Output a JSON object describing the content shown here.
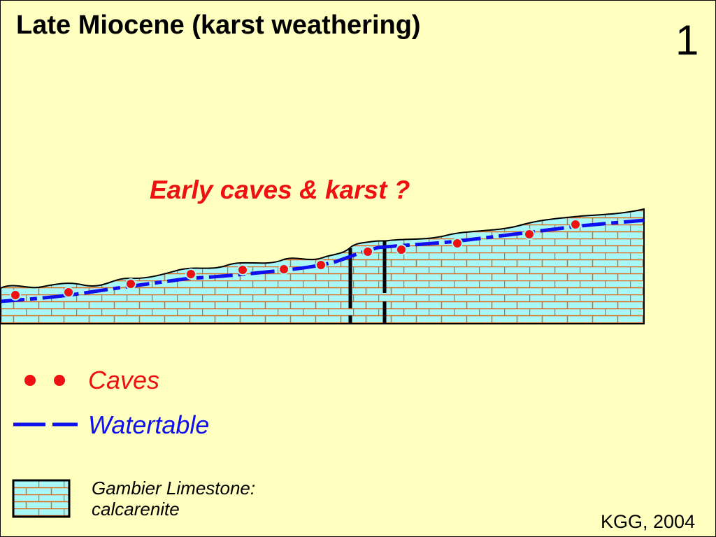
{
  "title": "Late Miocene (karst weathering)",
  "slide_number": "1",
  "annotation": "Early caves & karst ?",
  "legend": {
    "caves_label": "Caves",
    "watertable_label": "Watertable",
    "limestone_label_line1": "Gambier Limestone:",
    "limestone_label_line2": "calcarenite"
  },
  "credit": "KGG, 2004",
  "colors": {
    "background": "#ffffc0",
    "limestone_fill": "#a8f8f8",
    "brick_lines": "#e06a1a",
    "caves": "#ee1111",
    "watertable": "#1010ee",
    "outline": "#000000"
  },
  "cave_count": 13
}
